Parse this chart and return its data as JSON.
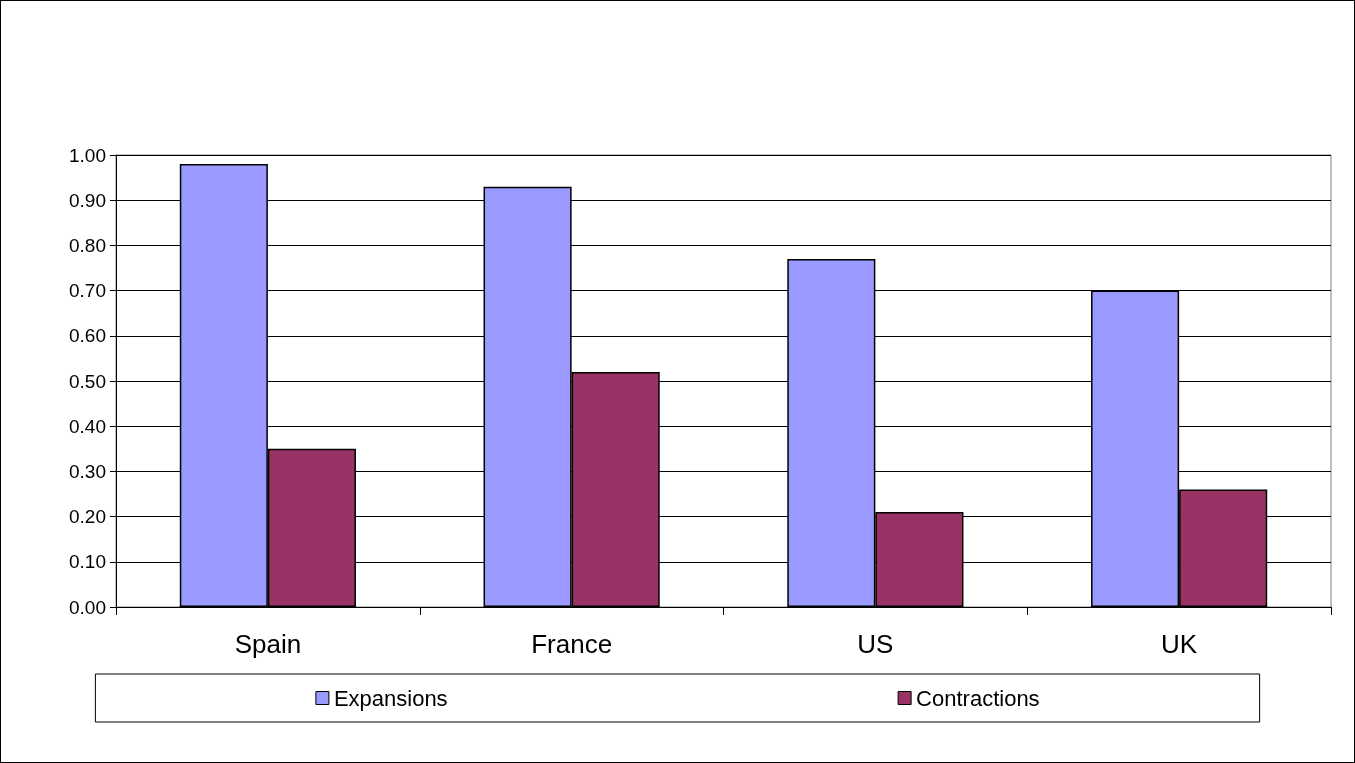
{
  "chart_data": {
    "type": "bar",
    "categories": [
      "Spain",
      "France",
      "US",
      "UK"
    ],
    "series": [
      {
        "name": "Expansions",
        "color": "#9999ff",
        "values": [
          0.98,
          0.93,
          0.77,
          0.7
        ]
      },
      {
        "name": "Contractions",
        "color": "#993366",
        "values": [
          0.35,
          0.52,
          0.21,
          0.26
        ]
      }
    ],
    "ylim": [
      0,
      1
    ],
    "yticks": [
      {
        "value": 0,
        "label": "0.00"
      },
      {
        "value": 0.1,
        "label": "0.10"
      },
      {
        "value": 0.2,
        "label": "0.20"
      },
      {
        "value": 0.3,
        "label": "0.30"
      },
      {
        "value": 0.4,
        "label": "0.40"
      },
      {
        "value": 0.5,
        "label": "0.50"
      },
      {
        "value": 0.6,
        "label": "0.60"
      },
      {
        "value": 0.7,
        "label": "0.70"
      },
      {
        "value": 0.8,
        "label": "0.80"
      },
      {
        "value": 0.9,
        "label": "0.90"
      },
      {
        "value": 1.0,
        "label": "1.00"
      }
    ],
    "grid": "y",
    "legend": "bottom"
  }
}
